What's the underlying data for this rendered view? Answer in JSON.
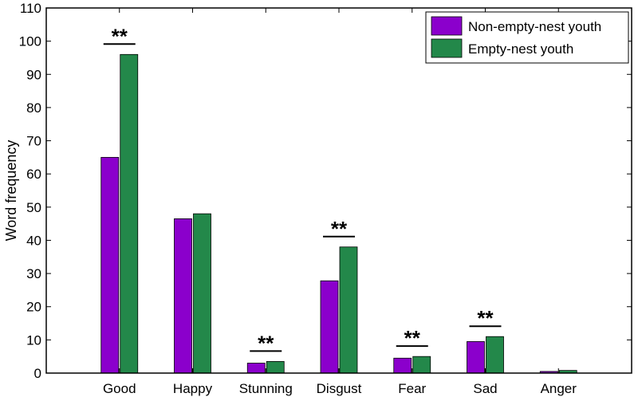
{
  "chart_data": {
    "type": "bar",
    "title": "",
    "xlabel": "",
    "ylabel": "Word frequency",
    "ylim": [
      0,
      110
    ],
    "yticks": [
      0,
      10,
      20,
      30,
      40,
      50,
      60,
      70,
      80,
      90,
      100,
      110
    ],
    "categories": [
      "Good",
      "Happy",
      "Stunning",
      "Disgust",
      "Fear",
      "Sad",
      "Anger"
    ],
    "series": [
      {
        "name": "Non-empty-nest youth",
        "color": "#8B00CC",
        "values": [
          65,
          46.5,
          3,
          27.8,
          4.5,
          9.5,
          0.5
        ]
      },
      {
        "name": "Empty-nest youth",
        "color": "#23884A",
        "values": [
          96,
          48,
          3.5,
          38,
          5,
          11,
          0.8
        ]
      }
    ],
    "significance": [
      {
        "category": "Good",
        "label": "**"
      },
      {
        "category": "Stunning",
        "label": "**"
      },
      {
        "category": "Disgust",
        "label": "**"
      },
      {
        "category": "Fear",
        "label": "**"
      },
      {
        "category": "Sad",
        "label": "**"
      }
    ],
    "legend_position": "top-right",
    "grid": false
  }
}
